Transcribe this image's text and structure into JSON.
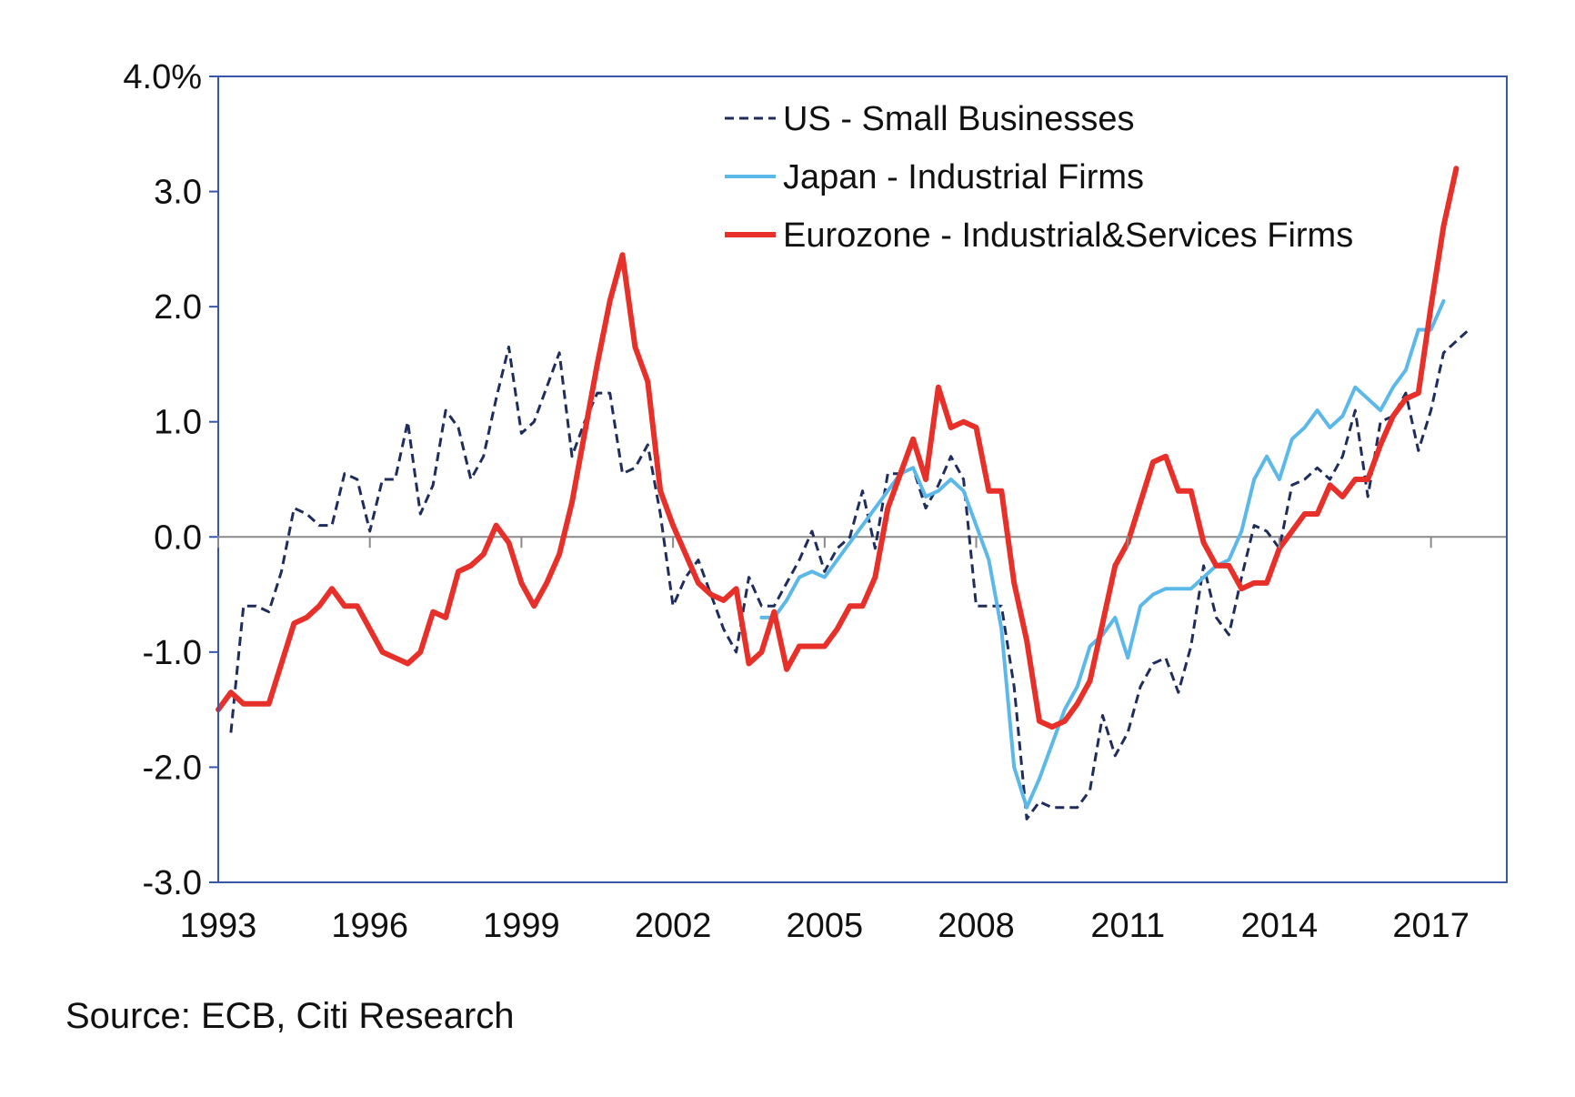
{
  "source": "Source: ECB, Citi Research",
  "chart_data": {
    "type": "line",
    "title": "",
    "xlabel": "",
    "ylabel": "",
    "xlim": [
      1993,
      2018.5
    ],
    "ylim": [
      -3.0,
      4.0
    ],
    "x_ticks": [
      1993,
      1996,
      1999,
      2002,
      2005,
      2008,
      2011,
      2014,
      2017
    ],
    "x_tick_labels": [
      "1993",
      "1996",
      "1999",
      "2002",
      "2005",
      "2008",
      "2011",
      "2014",
      "2017"
    ],
    "y_ticks": [
      -3,
      -2,
      -1,
      0,
      1,
      2,
      3,
      4
    ],
    "y_tick_labels": [
      "-3.0",
      "-2.0",
      "-1.0",
      "0.0",
      "1.0",
      "2.0",
      "3.0",
      "4.0%"
    ],
    "grid": false,
    "zero_line": true,
    "legend_position": "top-right",
    "series": [
      {
        "name": "US - Small Businesses",
        "color": "#1f2d5c",
        "style": "dashed",
        "points": [
          [
            1993.25,
            -1.7
          ],
          [
            1993.5,
            -0.6
          ],
          [
            1993.75,
            -0.6
          ],
          [
            1994.0,
            -0.65
          ],
          [
            1994.25,
            -0.3
          ],
          [
            1994.5,
            0.25
          ],
          [
            1994.75,
            0.2
          ],
          [
            1995.0,
            0.1
          ],
          [
            1995.25,
            0.1
          ],
          [
            1995.5,
            0.55
          ],
          [
            1995.75,
            0.5
          ],
          [
            1996.0,
            0.05
          ],
          [
            1996.25,
            0.5
          ],
          [
            1996.5,
            0.5
          ],
          [
            1996.75,
            1.0
          ],
          [
            1997.0,
            0.2
          ],
          [
            1997.25,
            0.45
          ],
          [
            1997.5,
            1.1
          ],
          [
            1997.75,
            0.95
          ],
          [
            1998.0,
            0.5
          ],
          [
            1998.25,
            0.7
          ],
          [
            1998.5,
            1.2
          ],
          [
            1998.75,
            1.65
          ],
          [
            1999.0,
            0.9
          ],
          [
            1999.25,
            1.0
          ],
          [
            1999.5,
            1.3
          ],
          [
            1999.75,
            1.6
          ],
          [
            2000.0,
            0.7
          ],
          [
            2000.25,
            1.0
          ],
          [
            2000.5,
            1.25
          ],
          [
            2000.75,
            1.25
          ],
          [
            2001.0,
            0.55
          ],
          [
            2001.25,
            0.6
          ],
          [
            2001.5,
            0.8
          ],
          [
            2001.75,
            0.2
          ],
          [
            2002.0,
            -0.6
          ],
          [
            2002.25,
            -0.35
          ],
          [
            2002.5,
            -0.2
          ],
          [
            2002.75,
            -0.5
          ],
          [
            2003.0,
            -0.8
          ],
          [
            2003.25,
            -1.0
          ],
          [
            2003.5,
            -0.35
          ],
          [
            2003.75,
            -0.6
          ],
          [
            2004.0,
            -0.6
          ],
          [
            2004.25,
            -0.4
          ],
          [
            2004.5,
            -0.2
          ],
          [
            2004.75,
            0.05
          ],
          [
            2005.0,
            -0.3
          ],
          [
            2005.25,
            -0.1
          ],
          [
            2005.5,
            0.0
          ],
          [
            2005.75,
            0.4
          ],
          [
            2006.0,
            -0.1
          ],
          [
            2006.25,
            0.55
          ],
          [
            2006.5,
            0.55
          ],
          [
            2006.75,
            0.6
          ],
          [
            2007.0,
            0.25
          ],
          [
            2007.25,
            0.45
          ],
          [
            2007.5,
            0.7
          ],
          [
            2007.75,
            0.5
          ],
          [
            2008.0,
            -0.6
          ],
          [
            2008.25,
            -0.6
          ],
          [
            2008.5,
            -0.6
          ],
          [
            2008.75,
            -1.3
          ],
          [
            2009.0,
            -2.45
          ],
          [
            2009.25,
            -2.3
          ],
          [
            2009.5,
            -2.35
          ],
          [
            2009.75,
            -2.35
          ],
          [
            2010.0,
            -2.35
          ],
          [
            2010.25,
            -2.2
          ],
          [
            2010.5,
            -1.55
          ],
          [
            2010.75,
            -1.9
          ],
          [
            2011.0,
            -1.7
          ],
          [
            2011.25,
            -1.3
          ],
          [
            2011.5,
            -1.1
          ],
          [
            2011.75,
            -1.05
          ],
          [
            2012.0,
            -1.35
          ],
          [
            2012.25,
            -0.95
          ],
          [
            2012.5,
            -0.25
          ],
          [
            2012.75,
            -0.7
          ],
          [
            2013.0,
            -0.85
          ],
          [
            2013.25,
            -0.35
          ],
          [
            2013.5,
            0.1
          ],
          [
            2013.75,
            0.05
          ],
          [
            2014.0,
            -0.1
          ],
          [
            2014.25,
            0.45
          ],
          [
            2014.5,
            0.5
          ],
          [
            2014.75,
            0.6
          ],
          [
            2015.0,
            0.5
          ],
          [
            2015.25,
            0.7
          ],
          [
            2015.5,
            1.1
          ],
          [
            2015.75,
            0.35
          ],
          [
            2016.0,
            1.0
          ],
          [
            2016.25,
            1.05
          ],
          [
            2016.5,
            1.25
          ],
          [
            2016.75,
            0.75
          ],
          [
            2017.0,
            1.1
          ],
          [
            2017.25,
            1.6
          ],
          [
            2017.5,
            1.7
          ],
          [
            2017.75,
            1.8
          ]
        ]
      },
      {
        "name": "Japan - Industrial Firms",
        "color": "#5bb8e8",
        "style": "solid",
        "points": [
          [
            2003.75,
            -0.7
          ],
          [
            2004.0,
            -0.7
          ],
          [
            2004.25,
            -0.55
          ],
          [
            2004.5,
            -0.35
          ],
          [
            2004.75,
            -0.3
          ],
          [
            2005.0,
            -0.35
          ],
          [
            2005.25,
            -0.2
          ],
          [
            2005.5,
            -0.05
          ],
          [
            2005.75,
            0.1
          ],
          [
            2006.0,
            0.25
          ],
          [
            2006.25,
            0.4
          ],
          [
            2006.5,
            0.55
          ],
          [
            2006.75,
            0.6
          ],
          [
            2007.0,
            0.35
          ],
          [
            2007.25,
            0.4
          ],
          [
            2007.5,
            0.5
          ],
          [
            2007.75,
            0.4
          ],
          [
            2008.0,
            0.1
          ],
          [
            2008.25,
            -0.2
          ],
          [
            2008.5,
            -0.8
          ],
          [
            2008.75,
            -2.0
          ],
          [
            2009.0,
            -2.35
          ],
          [
            2009.25,
            -2.1
          ],
          [
            2009.5,
            -1.8
          ],
          [
            2009.75,
            -1.5
          ],
          [
            2010.0,
            -1.3
          ],
          [
            2010.25,
            -0.95
          ],
          [
            2010.5,
            -0.85
          ],
          [
            2010.75,
            -0.7
          ],
          [
            2011.0,
            -1.05
          ],
          [
            2011.25,
            -0.6
          ],
          [
            2011.5,
            -0.5
          ],
          [
            2011.75,
            -0.45
          ],
          [
            2012.0,
            -0.45
          ],
          [
            2012.25,
            -0.45
          ],
          [
            2012.5,
            -0.35
          ],
          [
            2012.75,
            -0.25
          ],
          [
            2013.0,
            -0.2
          ],
          [
            2013.25,
            0.05
          ],
          [
            2013.5,
            0.5
          ],
          [
            2013.75,
            0.7
          ],
          [
            2014.0,
            0.5
          ],
          [
            2014.25,
            0.85
          ],
          [
            2014.5,
            0.95
          ],
          [
            2014.75,
            1.1
          ],
          [
            2015.0,
            0.95
          ],
          [
            2015.25,
            1.05
          ],
          [
            2015.5,
            1.3
          ],
          [
            2015.75,
            1.2
          ],
          [
            2016.0,
            1.1
          ],
          [
            2016.25,
            1.3
          ],
          [
            2016.5,
            1.45
          ],
          [
            2016.75,
            1.8
          ],
          [
            2017.0,
            1.8
          ],
          [
            2017.25,
            2.05
          ]
        ]
      },
      {
        "name": "Eurozone - Industrial&Services Firms",
        "color": "#e8302a",
        "style": "solid",
        "points": [
          [
            1993.0,
            -1.5
          ],
          [
            1993.25,
            -1.35
          ],
          [
            1993.5,
            -1.45
          ],
          [
            1993.75,
            -1.45
          ],
          [
            1994.0,
            -1.45
          ],
          [
            1994.25,
            -1.1
          ],
          [
            1994.5,
            -0.75
          ],
          [
            1994.75,
            -0.7
          ],
          [
            1995.0,
            -0.6
          ],
          [
            1995.25,
            -0.45
          ],
          [
            1995.5,
            -0.6
          ],
          [
            1995.75,
            -0.6
          ],
          [
            1996.0,
            -0.8
          ],
          [
            1996.25,
            -1.0
          ],
          [
            1996.5,
            -1.05
          ],
          [
            1996.75,
            -1.1
          ],
          [
            1997.0,
            -1.0
          ],
          [
            1997.25,
            -0.65
          ],
          [
            1997.5,
            -0.7
          ],
          [
            1997.75,
            -0.3
          ],
          [
            1998.0,
            -0.25
          ],
          [
            1998.25,
            -0.15
          ],
          [
            1998.5,
            0.1
          ],
          [
            1998.75,
            -0.05
          ],
          [
            1999.0,
            -0.4
          ],
          [
            1999.25,
            -0.6
          ],
          [
            1999.5,
            -0.4
          ],
          [
            1999.75,
            -0.15
          ],
          [
            2000.0,
            0.3
          ],
          [
            2000.25,
            0.9
          ],
          [
            2000.5,
            1.5
          ],
          [
            2000.75,
            2.05
          ],
          [
            2001.0,
            2.45
          ],
          [
            2001.25,
            1.65
          ],
          [
            2001.5,
            1.35
          ],
          [
            2001.75,
            0.4
          ],
          [
            2002.0,
            0.1
          ],
          [
            2002.25,
            -0.15
          ],
          [
            2002.5,
            -0.4
          ],
          [
            2002.75,
            -0.5
          ],
          [
            2003.0,
            -0.55
          ],
          [
            2003.25,
            -0.45
          ],
          [
            2003.5,
            -1.1
          ],
          [
            2003.75,
            -1.0
          ],
          [
            2004.0,
            -0.65
          ],
          [
            2004.25,
            -1.15
          ],
          [
            2004.5,
            -0.95
          ],
          [
            2004.75,
            -0.95
          ],
          [
            2005.0,
            -0.95
          ],
          [
            2005.25,
            -0.8
          ],
          [
            2005.5,
            -0.6
          ],
          [
            2005.75,
            -0.6
          ],
          [
            2006.0,
            -0.35
          ],
          [
            2006.25,
            0.25
          ],
          [
            2006.5,
            0.55
          ],
          [
            2006.75,
            0.85
          ],
          [
            2007.0,
            0.5
          ],
          [
            2007.25,
            1.3
          ],
          [
            2007.5,
            0.95
          ],
          [
            2007.75,
            1.0
          ],
          [
            2008.0,
            0.95
          ],
          [
            2008.25,
            0.4
          ],
          [
            2008.5,
            0.4
          ],
          [
            2008.75,
            -0.4
          ],
          [
            2009.0,
            -0.9
          ],
          [
            2009.25,
            -1.6
          ],
          [
            2009.5,
            -1.65
          ],
          [
            2009.75,
            -1.6
          ],
          [
            2010.0,
            -1.45
          ],
          [
            2010.25,
            -1.25
          ],
          [
            2010.5,
            -0.75
          ],
          [
            2010.75,
            -0.25
          ],
          [
            2011.0,
            -0.05
          ],
          [
            2011.25,
            0.3
          ],
          [
            2011.5,
            0.65
          ],
          [
            2011.75,
            0.7
          ],
          [
            2012.0,
            0.4
          ],
          [
            2012.25,
            0.4
          ],
          [
            2012.5,
            -0.05
          ],
          [
            2012.75,
            -0.25
          ],
          [
            2013.0,
            -0.25
          ],
          [
            2013.25,
            -0.45
          ],
          [
            2013.5,
            -0.4
          ],
          [
            2013.75,
            -0.4
          ],
          [
            2014.0,
            -0.1
          ],
          [
            2014.25,
            0.05
          ],
          [
            2014.5,
            0.2
          ],
          [
            2014.75,
            0.2
          ],
          [
            2015.0,
            0.45
          ],
          [
            2015.25,
            0.35
          ],
          [
            2015.5,
            0.5
          ],
          [
            2015.75,
            0.5
          ],
          [
            2016.0,
            0.8
          ],
          [
            2016.25,
            1.05
          ],
          [
            2016.5,
            1.2
          ],
          [
            2016.75,
            1.25
          ],
          [
            2017.0,
            2.0
          ],
          [
            2017.25,
            2.7
          ],
          [
            2017.5,
            3.2
          ]
        ]
      }
    ]
  }
}
